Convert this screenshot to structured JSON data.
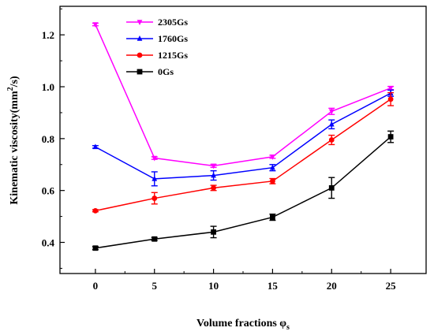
{
  "chart_data": {
    "type": "line",
    "xlabel": "Volume fractions φ",
    "xlabel_sub": "s",
    "ylabel_main": "Kinematic viscosity(mm",
    "ylabel_sup": "2",
    "ylabel_tail": "/s)",
    "x": [
      0,
      5,
      10,
      15,
      20,
      25
    ],
    "xticks": [
      "0",
      "5",
      "10",
      "15",
      "20",
      "25"
    ],
    "yticks": [
      "0.4",
      "0.6",
      "0.8",
      "1.0",
      "1.2"
    ],
    "xlim": [
      -3,
      28
    ],
    "ylim": [
      0.28,
      1.31
    ],
    "grid": false,
    "legend_position": "top-left",
    "series": [
      {
        "name": "2305Gs",
        "color": "#ff00ff",
        "marker": "triangle-down",
        "values": [
          1.24,
          0.725,
          0.695,
          0.73,
          0.905,
          0.995
        ],
        "errors": [
          0.005,
          0.005,
          0.006,
          0.006,
          0.012,
          0.006
        ]
      },
      {
        "name": "1760Gs",
        "color": "#0000ff",
        "marker": "triangle-up",
        "values": [
          0.768,
          0.645,
          0.658,
          0.688,
          0.855,
          0.975
        ],
        "errors": [
          0.005,
          0.027,
          0.018,
          0.012,
          0.017,
          0.012
        ]
      },
      {
        "name": "1215Gs",
        "color": "#ff0000",
        "marker": "circle",
        "values": [
          0.522,
          0.57,
          0.61,
          0.636,
          0.795,
          0.952
        ],
        "errors": [
          0.004,
          0.022,
          0.01,
          0.01,
          0.018,
          0.025
        ]
      },
      {
        "name": "0Gs",
        "color": "#000000",
        "marker": "square",
        "values": [
          0.378,
          0.413,
          0.44,
          0.497,
          0.61,
          0.807
        ],
        "errors": [
          0.006,
          0.006,
          0.022,
          0.012,
          0.04,
          0.022
        ]
      }
    ]
  }
}
